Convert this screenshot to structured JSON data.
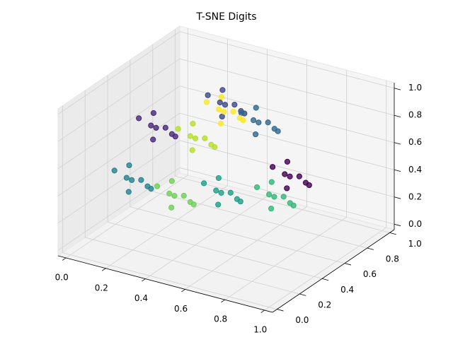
{
  "chart_data": {
    "type": "scatter3d",
    "title": "T-SNE Digits",
    "xlim": [
      -0.04,
      1.04
    ],
    "ylim": [
      -0.04,
      1.04
    ],
    "zlim": [
      -0.04,
      1.04
    ],
    "xticks": [
      {
        "value": 0,
        "label": "0.0"
      },
      {
        "value": 0.2,
        "label": "0.2"
      },
      {
        "value": 0.4,
        "label": "0.4"
      },
      {
        "value": 0.6,
        "label": "0.6"
      },
      {
        "value": 0.8,
        "label": "0.8"
      },
      {
        "value": 1,
        "label": "1.0"
      }
    ],
    "yticks": [
      {
        "value": 0,
        "label": "0.0"
      },
      {
        "value": 0.2,
        "label": "0.2"
      },
      {
        "value": 0.4,
        "label": "0.4"
      },
      {
        "value": 0.6,
        "label": "0.6"
      },
      {
        "value": 0.8,
        "label": "0.8"
      },
      {
        "value": 1,
        "label": "1.0"
      }
    ],
    "zticks": [
      {
        "value": 0,
        "label": "0.0"
      },
      {
        "value": 0.2,
        "label": "0.2"
      },
      {
        "value": 0.4,
        "label": "0.4"
      },
      {
        "value": 0.6,
        "label": "0.6"
      },
      {
        "value": 0.8,
        "label": "0.8"
      },
      {
        "value": 1,
        "label": "1.0"
      }
    ],
    "grid": true,
    "series": [
      {
        "color": "#440154",
        "x": [
          0.77,
          0.84,
          0.71,
          0.81,
          0.7,
          0.8,
          0.74,
          0.85
        ],
        "y": [
          0.59,
          0.55,
          0.65,
          0.66,
          0.56,
          0.51,
          0.62,
          0.62
        ],
        "z": [
          0.5,
          0.55,
          0.46,
          0.43,
          0.56,
          0.47,
          0.58,
          0.45
        ]
      },
      {
        "color": "#482878",
        "x": [
          0.17,
          0.24,
          0.11,
          0.21,
          0.1,
          0.2,
          0.14,
          0.25
        ],
        "y": [
          0.46,
          0.42,
          0.52,
          0.53,
          0.43,
          0.38,
          0.49,
          0.49
        ],
        "z": [
          0.7,
          0.75,
          0.66,
          0.63,
          0.76,
          0.67,
          0.78,
          0.65
        ]
      },
      {
        "color": "#3e4989",
        "x": [
          0.37,
          0.44,
          0.31,
          0.41,
          0.3,
          0.4,
          0.34,
          0.45
        ],
        "y": [
          0.72,
          0.68,
          0.78,
          0.79,
          0.69,
          0.64,
          0.75,
          0.75
        ],
        "z": [
          0.8,
          0.85,
          0.76,
          0.73,
          0.86,
          0.77,
          0.88,
          0.75
        ]
      },
      {
        "color": "#31688e",
        "x": [
          0.55,
          0.62,
          0.49,
          0.59,
          0.48,
          0.58,
          0.52,
          0.63
        ],
        "y": [
          0.7,
          0.66,
          0.76,
          0.77,
          0.67,
          0.62,
          0.73,
          0.73
        ],
        "z": [
          0.75,
          0.8,
          0.71,
          0.68,
          0.81,
          0.72,
          0.83,
          0.7
        ]
      },
      {
        "color": "#26828e",
        "x": [
          0.07,
          0.14,
          0.01,
          0.11,
          0.0,
          0.1,
          0.04,
          0.15
        ],
        "y": [
          0.42,
          0.38,
          0.48,
          0.49,
          0.39,
          0.34,
          0.45,
          0.45
        ],
        "z": [
          0.3,
          0.35,
          0.26,
          0.23,
          0.36,
          0.27,
          0.38,
          0.25
        ]
      },
      {
        "color": "#1f9e89",
        "x": [
          0.39,
          0.46,
          0.33,
          0.43,
          0.32,
          0.42,
          0.36,
          0.47
        ],
        "y": [
          0.65,
          0.61,
          0.71,
          0.72,
          0.62,
          0.57,
          0.68,
          0.68
        ],
        "z": [
          0.2,
          0.25,
          0.16,
          0.13,
          0.26,
          0.17,
          0.28,
          0.15
        ]
      },
      {
        "color": "#35b779",
        "x": [
          0.64,
          0.71,
          0.58,
          0.68,
          0.57,
          0.67,
          0.61,
          0.72
        ],
        "y": [
          0.68,
          0.64,
          0.74,
          0.75,
          0.65,
          0.6,
          0.71,
          0.71
        ],
        "z": [
          0.25,
          0.3,
          0.21,
          0.18,
          0.31,
          0.22,
          0.33,
          0.2
        ]
      },
      {
        "color": "#6ece58",
        "x": [
          0.2,
          0.27,
          0.14,
          0.24,
          0.13,
          0.23,
          0.17,
          0.28
        ],
        "y": [
          0.57,
          0.53,
          0.63,
          0.64,
          0.54,
          0.49,
          0.6,
          0.6
        ],
        "z": [
          0.15,
          0.2,
          0.11,
          0.08,
          0.21,
          0.12,
          0.23,
          0.1
        ]
      },
      {
        "color": "#b5de2b",
        "x": [
          0.26,
          0.33,
          0.2,
          0.3,
          0.19,
          0.29,
          0.23,
          0.34
        ],
        "y": [
          0.65,
          0.61,
          0.71,
          0.72,
          0.62,
          0.57,
          0.68,
          0.68
        ],
        "z": [
          0.55,
          0.6,
          0.51,
          0.48,
          0.61,
          0.52,
          0.63,
          0.5
        ]
      },
      {
        "color": "#fde725",
        "x": [
          0.33,
          0.4,
          0.27,
          0.37,
          0.26,
          0.36,
          0.3,
          0.41
        ],
        "y": [
          0.78,
          0.74,
          0.84,
          0.85,
          0.75,
          0.7,
          0.81,
          0.81
        ],
        "z": [
          0.7,
          0.75,
          0.66,
          0.63,
          0.76,
          0.67,
          0.78,
          0.65
        ]
      }
    ]
  }
}
